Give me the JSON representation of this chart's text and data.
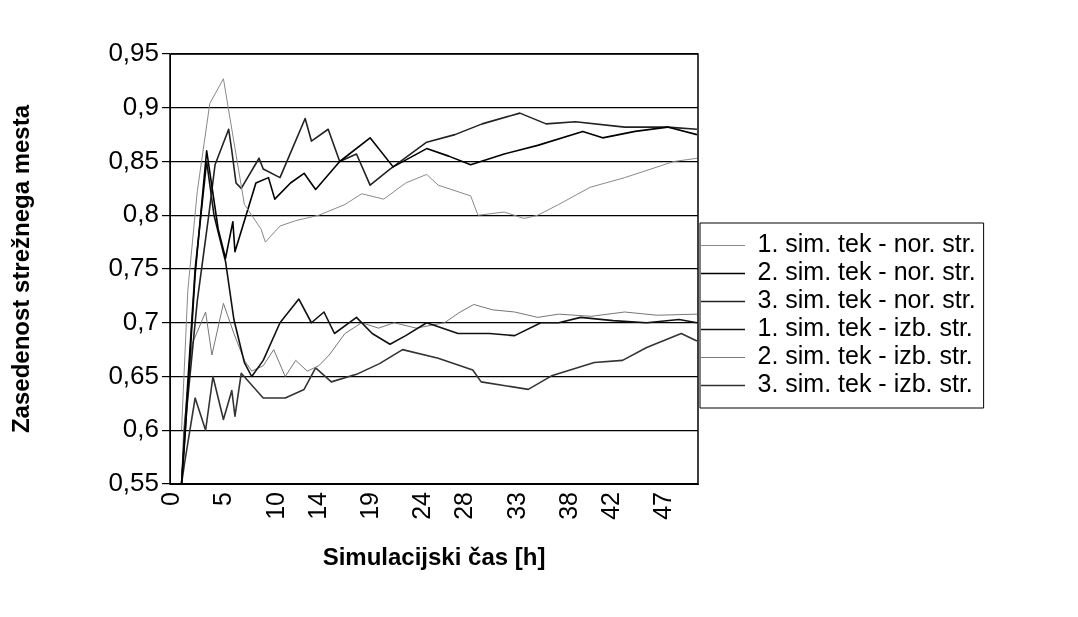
{
  "chart_data": {
    "type": "line",
    "xlabel": "Simulacijski čas [h]",
    "ylabel": "Zasedenost strežnega mesta",
    "xlim": [
      0,
      50.4
    ],
    "xticks": [
      0,
      5,
      10,
      14,
      19,
      24,
      28,
      33,
      38,
      42,
      47
    ],
    "ylim": [
      0.55,
      0.95
    ],
    "yticks": [
      {
        "value": 0.55,
        "label": "0,55"
      },
      {
        "value": 0.6,
        "label": "0,6"
      },
      {
        "value": 0.65,
        "label": "0,65"
      },
      {
        "value": 0.7,
        "label": "0,7"
      },
      {
        "value": 0.75,
        "label": "0,75"
      },
      {
        "value": 0.8,
        "label": "0,8"
      },
      {
        "value": 0.85,
        "label": "0,85"
      },
      {
        "value": 0.9,
        "label": "0,9"
      },
      {
        "value": 0.95,
        "label": "0,95"
      }
    ],
    "grid": "y",
    "legend": "right",
    "marker": "none",
    "line_style": "solid",
    "series": [
      {
        "name": "1. sim. tek - nor. str.",
        "color": "#8a8a8a",
        "x": [
          1.1,
          1.7,
          2.6,
          3.8,
          5.1,
          5.9,
          7.1,
          8.7,
          9.1,
          10.5,
          12.0,
          14.2,
          16.7,
          18.3,
          20.4,
          22.5,
          24.5,
          25.6,
          28.7,
          29.4,
          31.9,
          33.8,
          35.1,
          37.1,
          40.1,
          43.4,
          48.1,
          50.3
        ],
        "values": [
          0.6,
          0.73,
          0.822,
          0.904,
          0.927,
          0.88,
          0.81,
          0.787,
          0.775,
          0.79,
          0.795,
          0.8,
          0.81,
          0.82,
          0.815,
          0.83,
          0.838,
          0.828,
          0.818,
          0.8,
          0.803,
          0.797,
          0.8,
          0.81,
          0.826,
          0.835,
          0.85,
          0.853
        ]
      },
      {
        "name": "2. sim. tek - nor. str.",
        "color": "#000000",
        "x": [
          1.1,
          1.4,
          2.4,
          3.5,
          4.6,
          5.3,
          6.0,
          6.2,
          8.2,
          9.4,
          10.0,
          11.5,
          12.8,
          13.9,
          16.2,
          19.1,
          21.3,
          24.5,
          26.6,
          28.7,
          31.9,
          35.1,
          39.4,
          41.3,
          44.4,
          47.5,
          50.3
        ],
        "values": [
          0.55,
          0.59,
          0.745,
          0.86,
          0.787,
          0.76,
          0.794,
          0.766,
          0.83,
          0.835,
          0.815,
          0.83,
          0.839,
          0.824,
          0.85,
          0.872,
          0.845,
          0.862,
          0.855,
          0.847,
          0.857,
          0.865,
          0.878,
          0.872,
          0.878,
          0.882,
          0.875
        ]
      },
      {
        "name": "3. sim. tek - nor. str.",
        "color": "#222222",
        "x": [
          1.1,
          1.6,
          2.6,
          3.7,
          4.3,
          5.6,
          5.9,
          6.3,
          6.8,
          8.5,
          8.9,
          10.5,
          12.9,
          13.5,
          15.1,
          16.2,
          17.8,
          19.1,
          21.0,
          24.5,
          27.2,
          29.8,
          33.4,
          35.9,
          38.7,
          43.4,
          47.5,
          50.3
        ],
        "values": [
          0.55,
          0.62,
          0.72,
          0.8,
          0.847,
          0.88,
          0.86,
          0.83,
          0.825,
          0.853,
          0.843,
          0.835,
          0.89,
          0.869,
          0.88,
          0.85,
          0.857,
          0.828,
          0.843,
          0.868,
          0.875,
          0.885,
          0.895,
          0.885,
          0.887,
          0.882,
          0.882,
          0.88
        ]
      },
      {
        "name": "1. sim. tek - izb. str.",
        "color": "#111111",
        "x": [
          1.1,
          1.4,
          2.4,
          3.5,
          4.2,
          5.3,
          6.1,
          7.1,
          7.8,
          8.9,
          10.5,
          12.3,
          13.5,
          14.7,
          15.7,
          17.8,
          19.3,
          21.0,
          22.5,
          24.5,
          27.5,
          30.5,
          32.9,
          35.4,
          37.1,
          39.2,
          42.3,
          45.5,
          48.6,
          50.3
        ],
        "values": [
          0.55,
          0.6,
          0.75,
          0.85,
          0.8,
          0.757,
          0.703,
          0.663,
          0.65,
          0.665,
          0.7,
          0.722,
          0.7,
          0.71,
          0.69,
          0.705,
          0.69,
          0.68,
          0.688,
          0.7,
          0.69,
          0.69,
          0.688,
          0.7,
          0.7,
          0.705,
          0.702,
          0.7,
          0.703,
          0.7
        ]
      },
      {
        "name": "2. sim. tek - izb. str.",
        "color": "#777777",
        "x": [
          1.1,
          1.3,
          2.1,
          3.4,
          4.0,
          5.1,
          6.1,
          7.1,
          7.8,
          8.9,
          9.9,
          11.0,
          12.0,
          13.1,
          14.2,
          15.2,
          16.7,
          18.3,
          19.9,
          21.4,
          23.5,
          26.2,
          27.7,
          29.0,
          30.8,
          32.9,
          35.1,
          37.1,
          40.2,
          43.4,
          46.5,
          50.3
        ],
        "values": [
          0.55,
          0.6,
          0.68,
          0.71,
          0.67,
          0.718,
          0.69,
          0.665,
          0.655,
          0.66,
          0.675,
          0.65,
          0.665,
          0.655,
          0.66,
          0.67,
          0.69,
          0.7,
          0.695,
          0.7,
          0.695,
          0.7,
          0.71,
          0.717,
          0.712,
          0.71,
          0.705,
          0.708,
          0.706,
          0.71,
          0.707,
          0.708
        ]
      },
      {
        "name": "3. sim. tek - izb. str.",
        "color": "#333333",
        "x": [
          1.1,
          1.4,
          2.4,
          3.4,
          4.1,
          5.1,
          5.9,
          6.2,
          6.8,
          8.9,
          11.0,
          12.8,
          13.9,
          15.4,
          17.8,
          20.0,
          22.2,
          25.6,
          28.9,
          29.7,
          34.2,
          36.5,
          40.5,
          43.2,
          45.5,
          48.8,
          50.3
        ],
        "values": [
          0.55,
          0.57,
          0.63,
          0.6,
          0.65,
          0.61,
          0.637,
          0.613,
          0.653,
          0.63,
          0.63,
          0.638,
          0.658,
          0.645,
          0.652,
          0.662,
          0.675,
          0.667,
          0.656,
          0.645,
          0.638,
          0.651,
          0.663,
          0.665,
          0.677,
          0.69,
          0.683
        ]
      }
    ]
  }
}
